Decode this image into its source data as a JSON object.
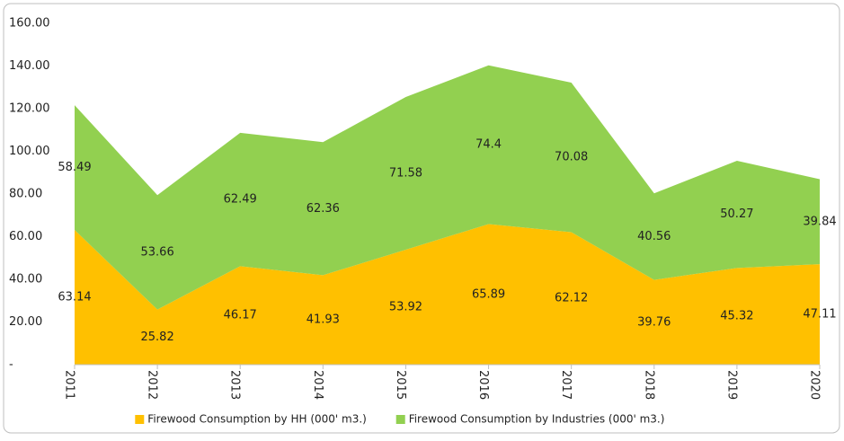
{
  "chart_data": {
    "type": "stacked-area",
    "categories": [
      "2011",
      "2012",
      "2013",
      "2014",
      "2015",
      "2016",
      "2017",
      "2018",
      "2019",
      "2020"
    ],
    "series": [
      {
        "name": "Firewood Consumption by HH (000' m3.)",
        "color": "#ffc000",
        "values": [
          63.14,
          25.82,
          46.17,
          41.93,
          53.92,
          65.89,
          62.12,
          39.76,
          45.32,
          47.11
        ]
      },
      {
        "name": "Firewood Consumption by Industries (000' m3.)",
        "color": "#92d050",
        "values": [
          58.49,
          53.66,
          62.49,
          62.36,
          71.58,
          74.4,
          70.08,
          40.56,
          50.27,
          39.84
        ]
      }
    ],
    "ylim": [
      0,
      160
    ],
    "yticks": [
      {
        "value": 0,
        "label": "-"
      },
      {
        "value": 20,
        "label": "20.00"
      },
      {
        "value": 40,
        "label": "40.00"
      },
      {
        "value": 60,
        "label": "60.00"
      },
      {
        "value": 80,
        "label": "80.00"
      },
      {
        "value": 100,
        "label": "100.00"
      },
      {
        "value": 120,
        "label": "120.00"
      },
      {
        "value": 140,
        "label": "140.00"
      },
      {
        "value": 160,
        "label": "160.00"
      }
    ],
    "grid": false,
    "legend": "bottom"
  }
}
